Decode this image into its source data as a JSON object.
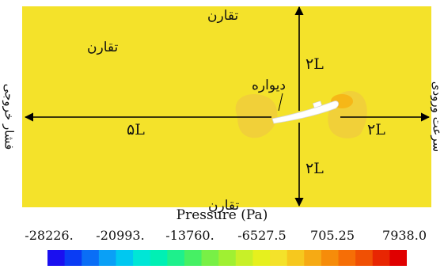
{
  "labels": {
    "top_boundary": "تقارن",
    "interior_symmetry": "تقارن",
    "bottom_boundary": "تقارن",
    "wall": "دیواره",
    "outlet": "فشار خروجی",
    "inlet": "سرعت ورودی",
    "up_distance": "۲L",
    "down_distance": "۲L",
    "upstream_distance": "۲L",
    "downstream_distance": "۵L"
  },
  "legend": {
    "title": "Pressure (Pa)",
    "ticks": [
      "-28226.",
      "-20993.",
      "-13760.",
      "-6527.5",
      "705.25",
      "7938.0"
    ],
    "min": -28226,
    "max": 7938,
    "colors": [
      "#1a0ff0",
      "#0a3cf4",
      "#0a6ef6",
      "#0aa0f6",
      "#00c8f0",
      "#00e6d6",
      "#00f0b4",
      "#1ef08c",
      "#46f064",
      "#78f046",
      "#a0f032",
      "#c8f028",
      "#e6f01e",
      "#f4e22a",
      "#f6c81e",
      "#f6aa14",
      "#f68c0a",
      "#f66e06",
      "#f05004",
      "#e82602",
      "#e00000"
    ],
    "domain_color": "#f4e22a",
    "wake_color": "#f0cc3c"
  }
}
